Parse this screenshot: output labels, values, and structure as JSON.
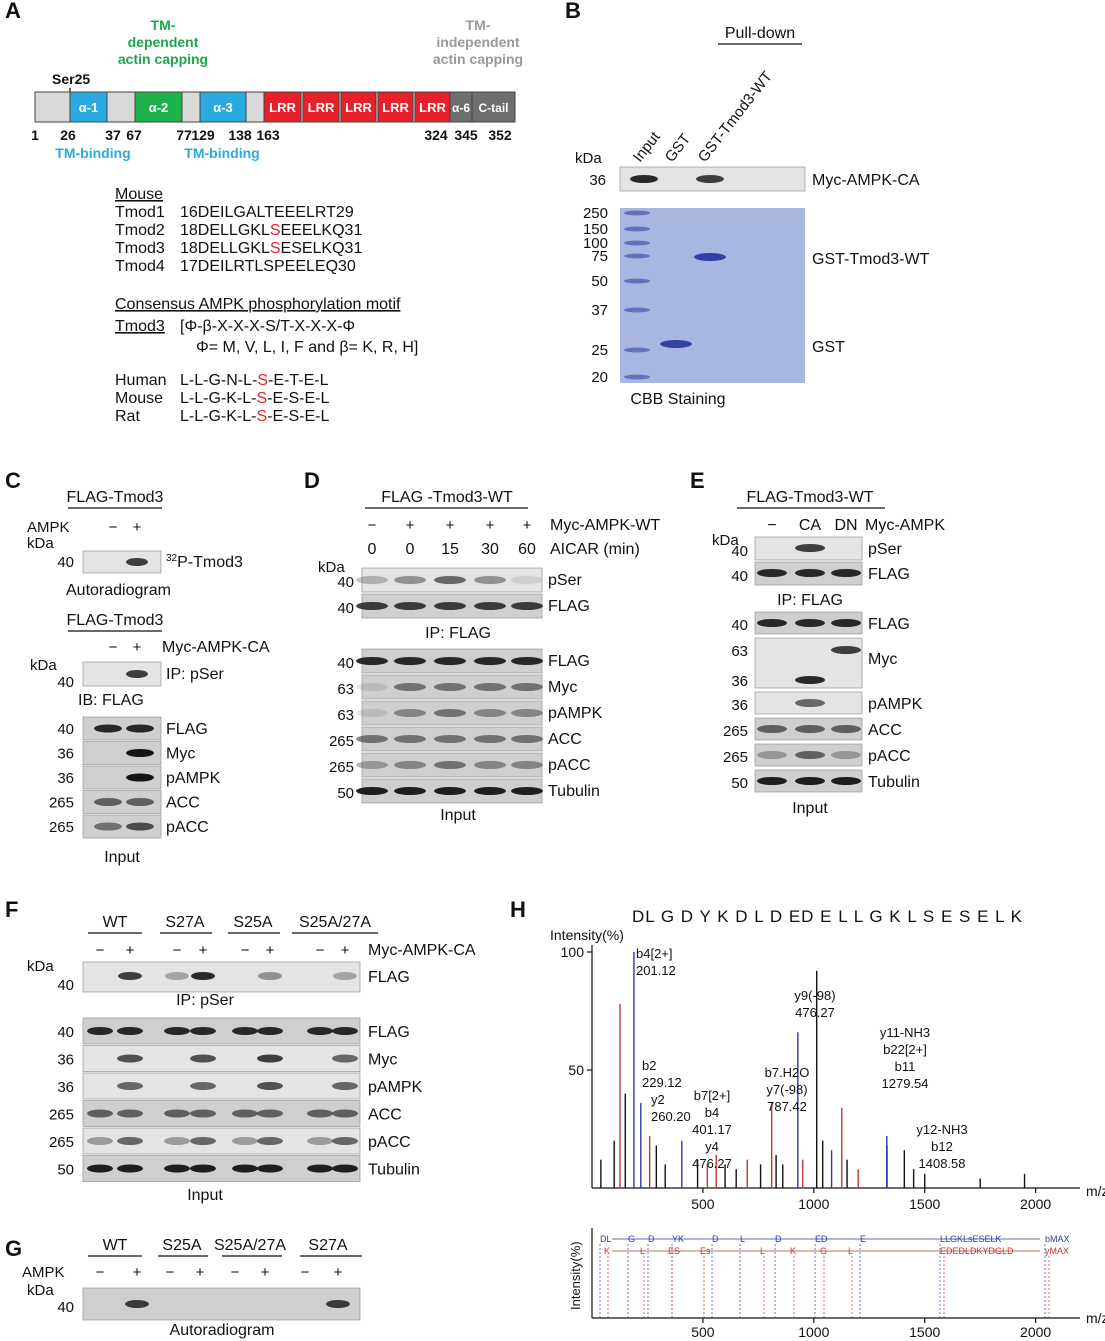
{
  "panels": {
    "A": {
      "label": "A",
      "ser25": "Ser25",
      "tm_dependent": [
        "TM-",
        "dependent",
        "actin capping"
      ],
      "tm_independent": [
        "TM-",
        "independent",
        "actin capping"
      ],
      "domains": [
        "α-1",
        "α-2",
        "α-3",
        "LRR",
        "LRR",
        "LRR",
        "LRR",
        "LRR",
        "α-6",
        "C-tail"
      ],
      "positions": [
        1,
        26,
        37,
        67,
        77,
        129,
        138,
        163,
        324,
        345,
        352
      ],
      "tm_binding": [
        "TM-binding",
        "TM-binding"
      ],
      "mouse_header": "Mouse",
      "sequences": [
        {
          "name": "Tmod1",
          "text": "16DEILGALTEEELRT29"
        },
        {
          "name": "Tmod2",
          "before": "18DELLGKL",
          "site": "S",
          "after": "EEELKQ31"
        },
        {
          "name": "Tmod3",
          "before": "18DELLGKL",
          "site": "S",
          "after": "ESELKQ31"
        },
        {
          "name": "Tmod4",
          "text": "17DEILRTLSPEELEQ30"
        }
      ],
      "consensus_title": "Consensus AMPK phosphorylation motif",
      "motif_name": "Tmod3",
      "motif": "[Φ-β-X-X-X-S/T-X-X-X-Φ",
      "motif_def": "Φ= M, V, L, I, F and β= K, R, H]",
      "species": [
        {
          "name": "Human",
          "before": "L-L-G-N-L-",
          "site": "S",
          "after": "-E-T-E-L"
        },
        {
          "name": "Mouse",
          "before": "L-L-G-K-L-",
          "site": "S",
          "after": "-E-S-E-L"
        },
        {
          "name": "Rat",
          "before": "L-L-G-K-L-",
          "site": "S",
          "after": "-E-S-E-L"
        }
      ]
    },
    "B": {
      "label": "B",
      "pull_down": "Pull-down",
      "lanes": [
        "Input",
        "GST",
        "GST-Tmod3-WT"
      ],
      "kda": "kDa",
      "blot_marker": 36,
      "blot_label": "Myc-AMPK-CA",
      "gel_markers": [
        250,
        150,
        100,
        75,
        50,
        37,
        25,
        20
      ],
      "gel_labels": [
        "GST-Tmod3-WT",
        "GST"
      ],
      "gel_caption": "CBB Staining"
    },
    "C": {
      "label": "C",
      "top_construct": "FLAG-Tmod3",
      "ampk": "AMPK",
      "top_signs": [
        "−",
        "+"
      ],
      "kda_top": "kDa",
      "top_marker": 40,
      "p32": {
        "sup": "32",
        "text": "P-Tmod3"
      },
      "autoradiogram": "Autoradiogram",
      "bottom_construct": "FLAG-Tmod3",
      "bottom_signs": [
        "−",
        "+"
      ],
      "bottom_treatment": "Myc-AMPK-CA",
      "kda_bottom": "kDa",
      "ip_marker": 40,
      "ip_label": "IP: pSer",
      "ib_label": "IB: FLAG",
      "blots": [
        {
          "marker": 40,
          "name": "FLAG"
        },
        {
          "marker": 36,
          "name": "Myc"
        },
        {
          "marker": 36,
          "name": "pAMPK"
        },
        {
          "marker": 265,
          "name": "ACC"
        },
        {
          "marker": 265,
          "name": "pACC"
        }
      ],
      "input": "Input"
    },
    "D": {
      "label": "D",
      "construct": "FLAG -Tmod3-WT",
      "signs": [
        "−",
        "+",
        "+",
        "+",
        "+"
      ],
      "treatment": "Myc-AMPK-WT",
      "aicar": [
        0,
        0,
        15,
        30,
        60
      ],
      "aicar_label": "AICAR (min)",
      "kda": "kDa",
      "ip_blots": [
        {
          "marker": 40,
          "name": "pSer"
        },
        {
          "marker": 40,
          "name": "FLAG"
        }
      ],
      "ip_label": "IP: FLAG",
      "input_blots": [
        {
          "marker": 40,
          "name": "FLAG"
        },
        {
          "marker": 63,
          "name": "Myc"
        },
        {
          "marker": 63,
          "name": "pAMPK"
        },
        {
          "marker": 265,
          "name": "ACC"
        },
        {
          "marker": 265,
          "name": "pACC"
        },
        {
          "marker": 50,
          "name": "Tubulin"
        }
      ],
      "input": "Input"
    },
    "E": {
      "label": "E",
      "construct": "FLAG-Tmod3-WT",
      "lanes": [
        "−",
        "CA",
        "DN"
      ],
      "treatment": "Myc-AMPK",
      "kda": "kDa",
      "ip_blots": [
        {
          "marker": 40,
          "name": "pSer"
        },
        {
          "marker": 40,
          "name": "FLAG"
        }
      ],
      "ip_label": "IP: FLAG",
      "input_blots": [
        {
          "marker": 40,
          "name": "FLAG"
        },
        {
          "marker": 63,
          "name": "Myc"
        },
        {
          "marker": 36,
          "name": "pAMPK"
        },
        {
          "marker": 265,
          "name": "ACC"
        },
        {
          "marker": 265,
          "name": "pACC"
        },
        {
          "marker": 50,
          "name": "Tubulin"
        }
      ],
      "myc_lower_marker": 36,
      "input": "Input"
    },
    "F": {
      "label": "F",
      "groups": [
        "WT",
        "S27A",
        "S25A",
        "S25A/27A"
      ],
      "signs": [
        "−",
        "+",
        "−",
        "+",
        "−",
        "+",
        "−",
        "+"
      ],
      "treatment": "Myc-AMPK-CA",
      "kda": "kDa",
      "ip_blot": {
        "marker": 40,
        "name": "FLAG"
      },
      "ip_label": "IP: pSer",
      "input_blots": [
        {
          "marker": 40,
          "name": "FLAG"
        },
        {
          "marker": 36,
          "name": "Myc"
        },
        {
          "marker": 36,
          "name": "pAMPK"
        },
        {
          "marker": 265,
          "name": "ACC"
        },
        {
          "marker": 265,
          "name": "pACC"
        },
        {
          "marker": 50,
          "name": "Tubulin"
        }
      ],
      "input": "Input"
    },
    "G": {
      "label": "G",
      "groups": [
        "WT",
        "S25A",
        "S25A/27A",
        "S27A"
      ],
      "ampk": "AMPK",
      "signs": [
        "−",
        "+",
        "−",
        "+",
        "−",
        "+",
        "−",
        "+"
      ],
      "kda": "kDa",
      "marker": 40,
      "autoradiogram": "Autoradiogram"
    },
    "H": {
      "label": "H",
      "peptide": "DL G D Y K D L D ED E L L G K L S E S E L K",
      "ylabel": "Intensity(%)",
      "xlabel": "m/z",
      "xlim": [
        0,
        2200
      ],
      "ylim": [
        0,
        100
      ],
      "xticks": [
        500,
        1000,
        1500,
        2000
      ],
      "yticks": [
        50,
        100
      ],
      "peaks": [
        {
          "color": "#111111",
          "mz": [
            40,
            100,
            150,
            290,
            330,
            476,
            600,
            650,
            760,
            830,
            860,
            1013,
            1040,
            1150,
            1330,
            1408,
            1450,
            1500,
            1750,
            1950
          ],
          "intensity": [
            12,
            20,
            40,
            18,
            10,
            12,
            10,
            8,
            10,
            14,
            10,
            92,
            20,
            12,
            18,
            16,
            8,
            6,
            4,
            6
          ]
        },
        {
          "color": "#c0392b",
          "mz": [
            126,
            260,
            520,
            560,
            700,
            810,
            950,
            1126,
            1200
          ],
          "intensity": [
            78,
            22,
            10,
            14,
            12,
            36,
            12,
            34,
            8
          ]
        },
        {
          "color": "#2e3aa8",
          "mz": [
            189,
            220,
            405,
            928,
            1080,
            1329
          ],
          "intensity": [
            100,
            36,
            20,
            66,
            16,
            22
          ]
        }
      ],
      "annotations": [
        [
          "b4[2+]",
          "201.12"
        ],
        [
          "b2",
          "229.12"
        ],
        [
          "y2",
          "260.20"
        ],
        [
          "b7[2+]",
          "b4",
          "401.17",
          "y4",
          "476.27"
        ],
        [
          "b7.H2O",
          "y7(-98)",
          "787.42"
        ],
        [
          "y9(-98)",
          "476.27"
        ],
        [
          "y11-NH3",
          "b22[2+]",
          "b11",
          "1279.54"
        ],
        [
          "y12-NH3",
          "b12",
          "1408.58"
        ]
      ],
      "inset": {
        "ylabel": "Intensity(%)",
        "xlabel": "m/z",
        "xlim": [
          0,
          2200
        ],
        "xticks": [
          500,
          1000,
          1500,
          2000
        ],
        "b_ions": [
          "DL",
          "G",
          "D",
          "YK",
          "D",
          "L",
          "D",
          "ED",
          "E",
          "LLGKLsESELK",
          "bMAX"
        ],
        "y_ions": [
          "K",
          "L",
          "ES",
          "Es",
          "L",
          "K",
          "G",
          "L",
          "EDEDLDKYDGLD",
          "yMAX"
        ]
      }
    }
  }
}
